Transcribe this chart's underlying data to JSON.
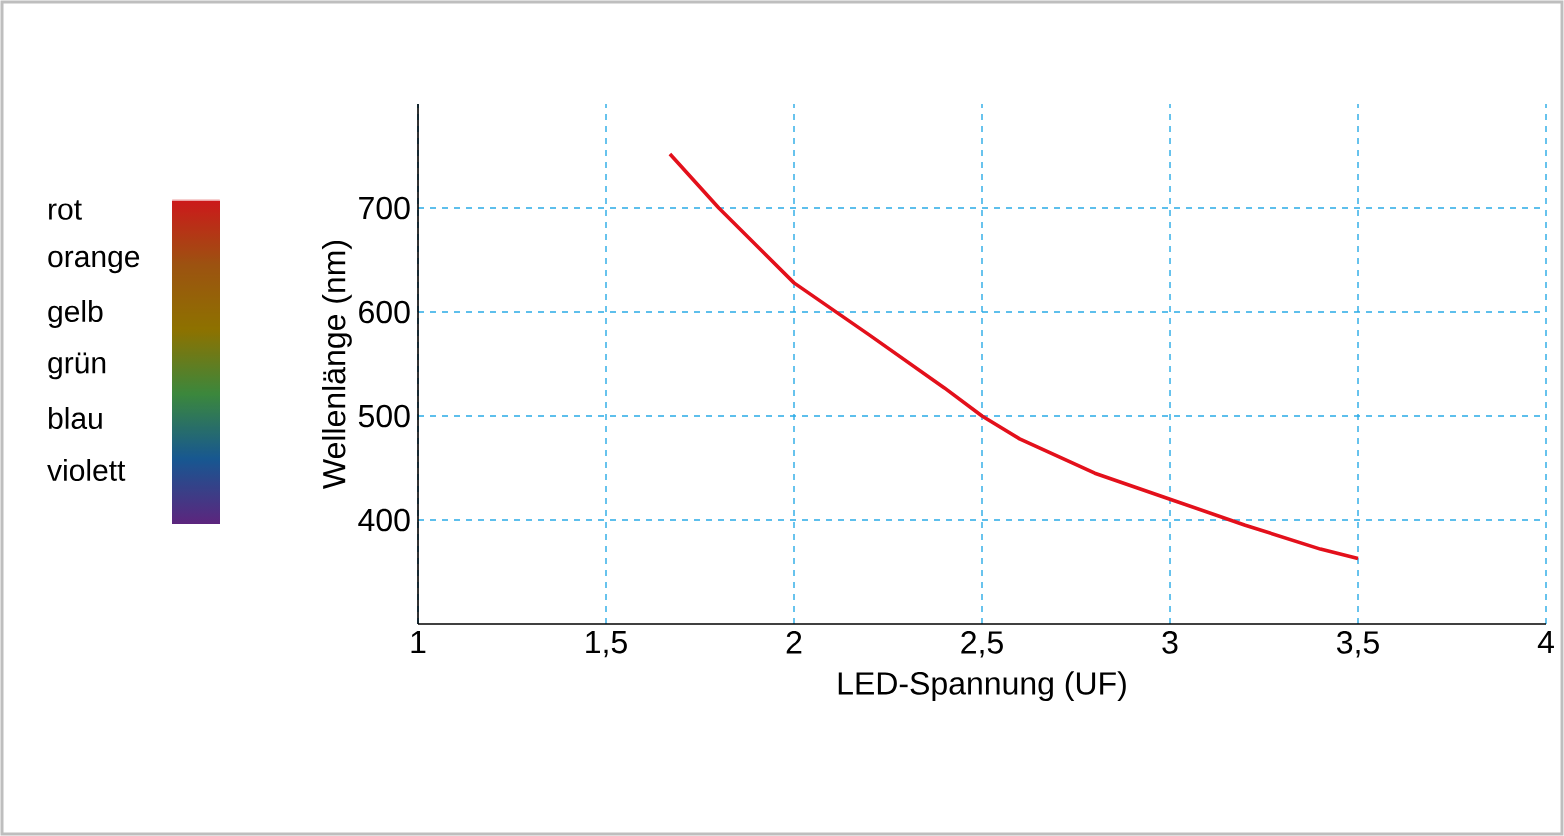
{
  "chart_data": {
    "type": "line",
    "xlabel": "LED-Spannung (UF)",
    "ylabel": "Wellenlänge (nm)",
    "annotations": [
      "rot",
      "orange",
      "gelb",
      "grün",
      "blau",
      "violett"
    ],
    "x": [
      1.67,
      1.8,
      2.0,
      2.2,
      2.4,
      2.5,
      2.6,
      2.8,
      3.0,
      3.2,
      3.4,
      3.5
    ],
    "series": [
      {
        "color": "#e3101b",
        "values": [
          752,
          700,
          628,
          578,
          527,
          500,
          478,
          445,
          420,
          395,
          372,
          363
        ]
      }
    ],
    "xlim": [
      1,
      4
    ],
    "ylim": [
      300,
      800
    ],
    "xticks": [
      1,
      {
        "value": 1.5,
        "label": "1,5"
      },
      2,
      {
        "value": 2.5,
        "label": "2,5"
      },
      3,
      {
        "value": 3.5,
        "label": "3,5"
      },
      4
    ],
    "yticks": [
      400,
      500,
      600,
      700
    ],
    "grid": true,
    "marker": "none",
    "line_style": "solid"
  }
}
